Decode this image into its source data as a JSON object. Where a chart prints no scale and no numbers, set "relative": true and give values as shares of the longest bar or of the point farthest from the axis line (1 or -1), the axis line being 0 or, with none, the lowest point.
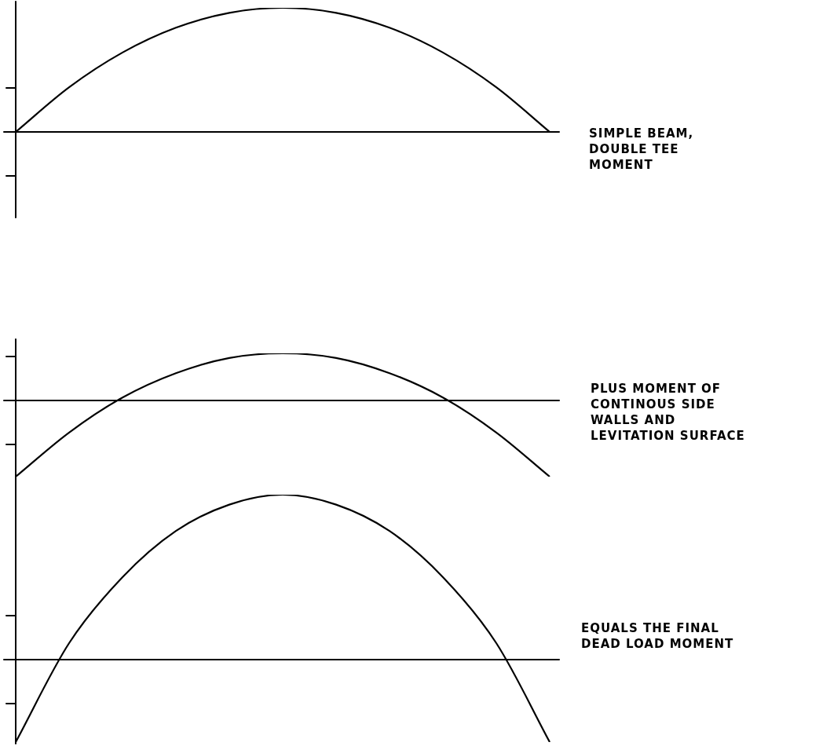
{
  "chart_data": [
    {
      "type": "line",
      "relative": true,
      "categories": [
        null,
        null,
        null,
        null,
        null,
        null,
        null,
        null,
        null,
        null,
        null
      ],
      "series": [
        {
          "color": "#000000",
          "values": [
            0,
            0.36,
            0.64,
            0.84,
            0.96,
            1,
            0.96,
            0.84,
            0.64,
            0.36,
            0
          ]
        }
      ],
      "annotations": [
        "SIMPLE BEAM,\nDOUBLE TEE\nMOMENT"
      ],
      "legend": false,
      "marker": "none",
      "line_style": "solid"
    },
    {
      "type": "line",
      "relative": true,
      "categories": [
        null,
        null,
        null,
        null,
        null,
        null,
        null,
        null,
        null,
        null,
        null
      ],
      "series": [
        {
          "color": "#000000",
          "values": [
            -1,
            -0.42,
            0.04,
            0.36,
            0.56,
            0.62,
            0.56,
            0.36,
            0.04,
            -0.42,
            -1
          ]
        }
      ],
      "annotations": [
        "PLUS MOMENT OF\nCONTINOUS SIDE\nWALLS AND\nLEVITATION SURFACE"
      ],
      "legend": false,
      "marker": "none",
      "line_style": "solid"
    },
    {
      "type": "line",
      "relative": true,
      "categories": [
        null,
        null,
        null,
        null,
        null,
        null,
        null,
        null,
        null,
        null,
        null
      ],
      "series": [
        {
          "color": "#000000",
          "values": [
            -0.5,
            0.1,
            0.5,
            0.78,
            0.94,
            1,
            0.94,
            0.78,
            0.5,
            0.1,
            -0.5
          ]
        }
      ],
      "annotations": [
        "EQUALS THE FINAL\nDEAD LOAD MOMENT"
      ],
      "legend": false,
      "marker": "none",
      "line_style": "solid"
    }
  ]
}
